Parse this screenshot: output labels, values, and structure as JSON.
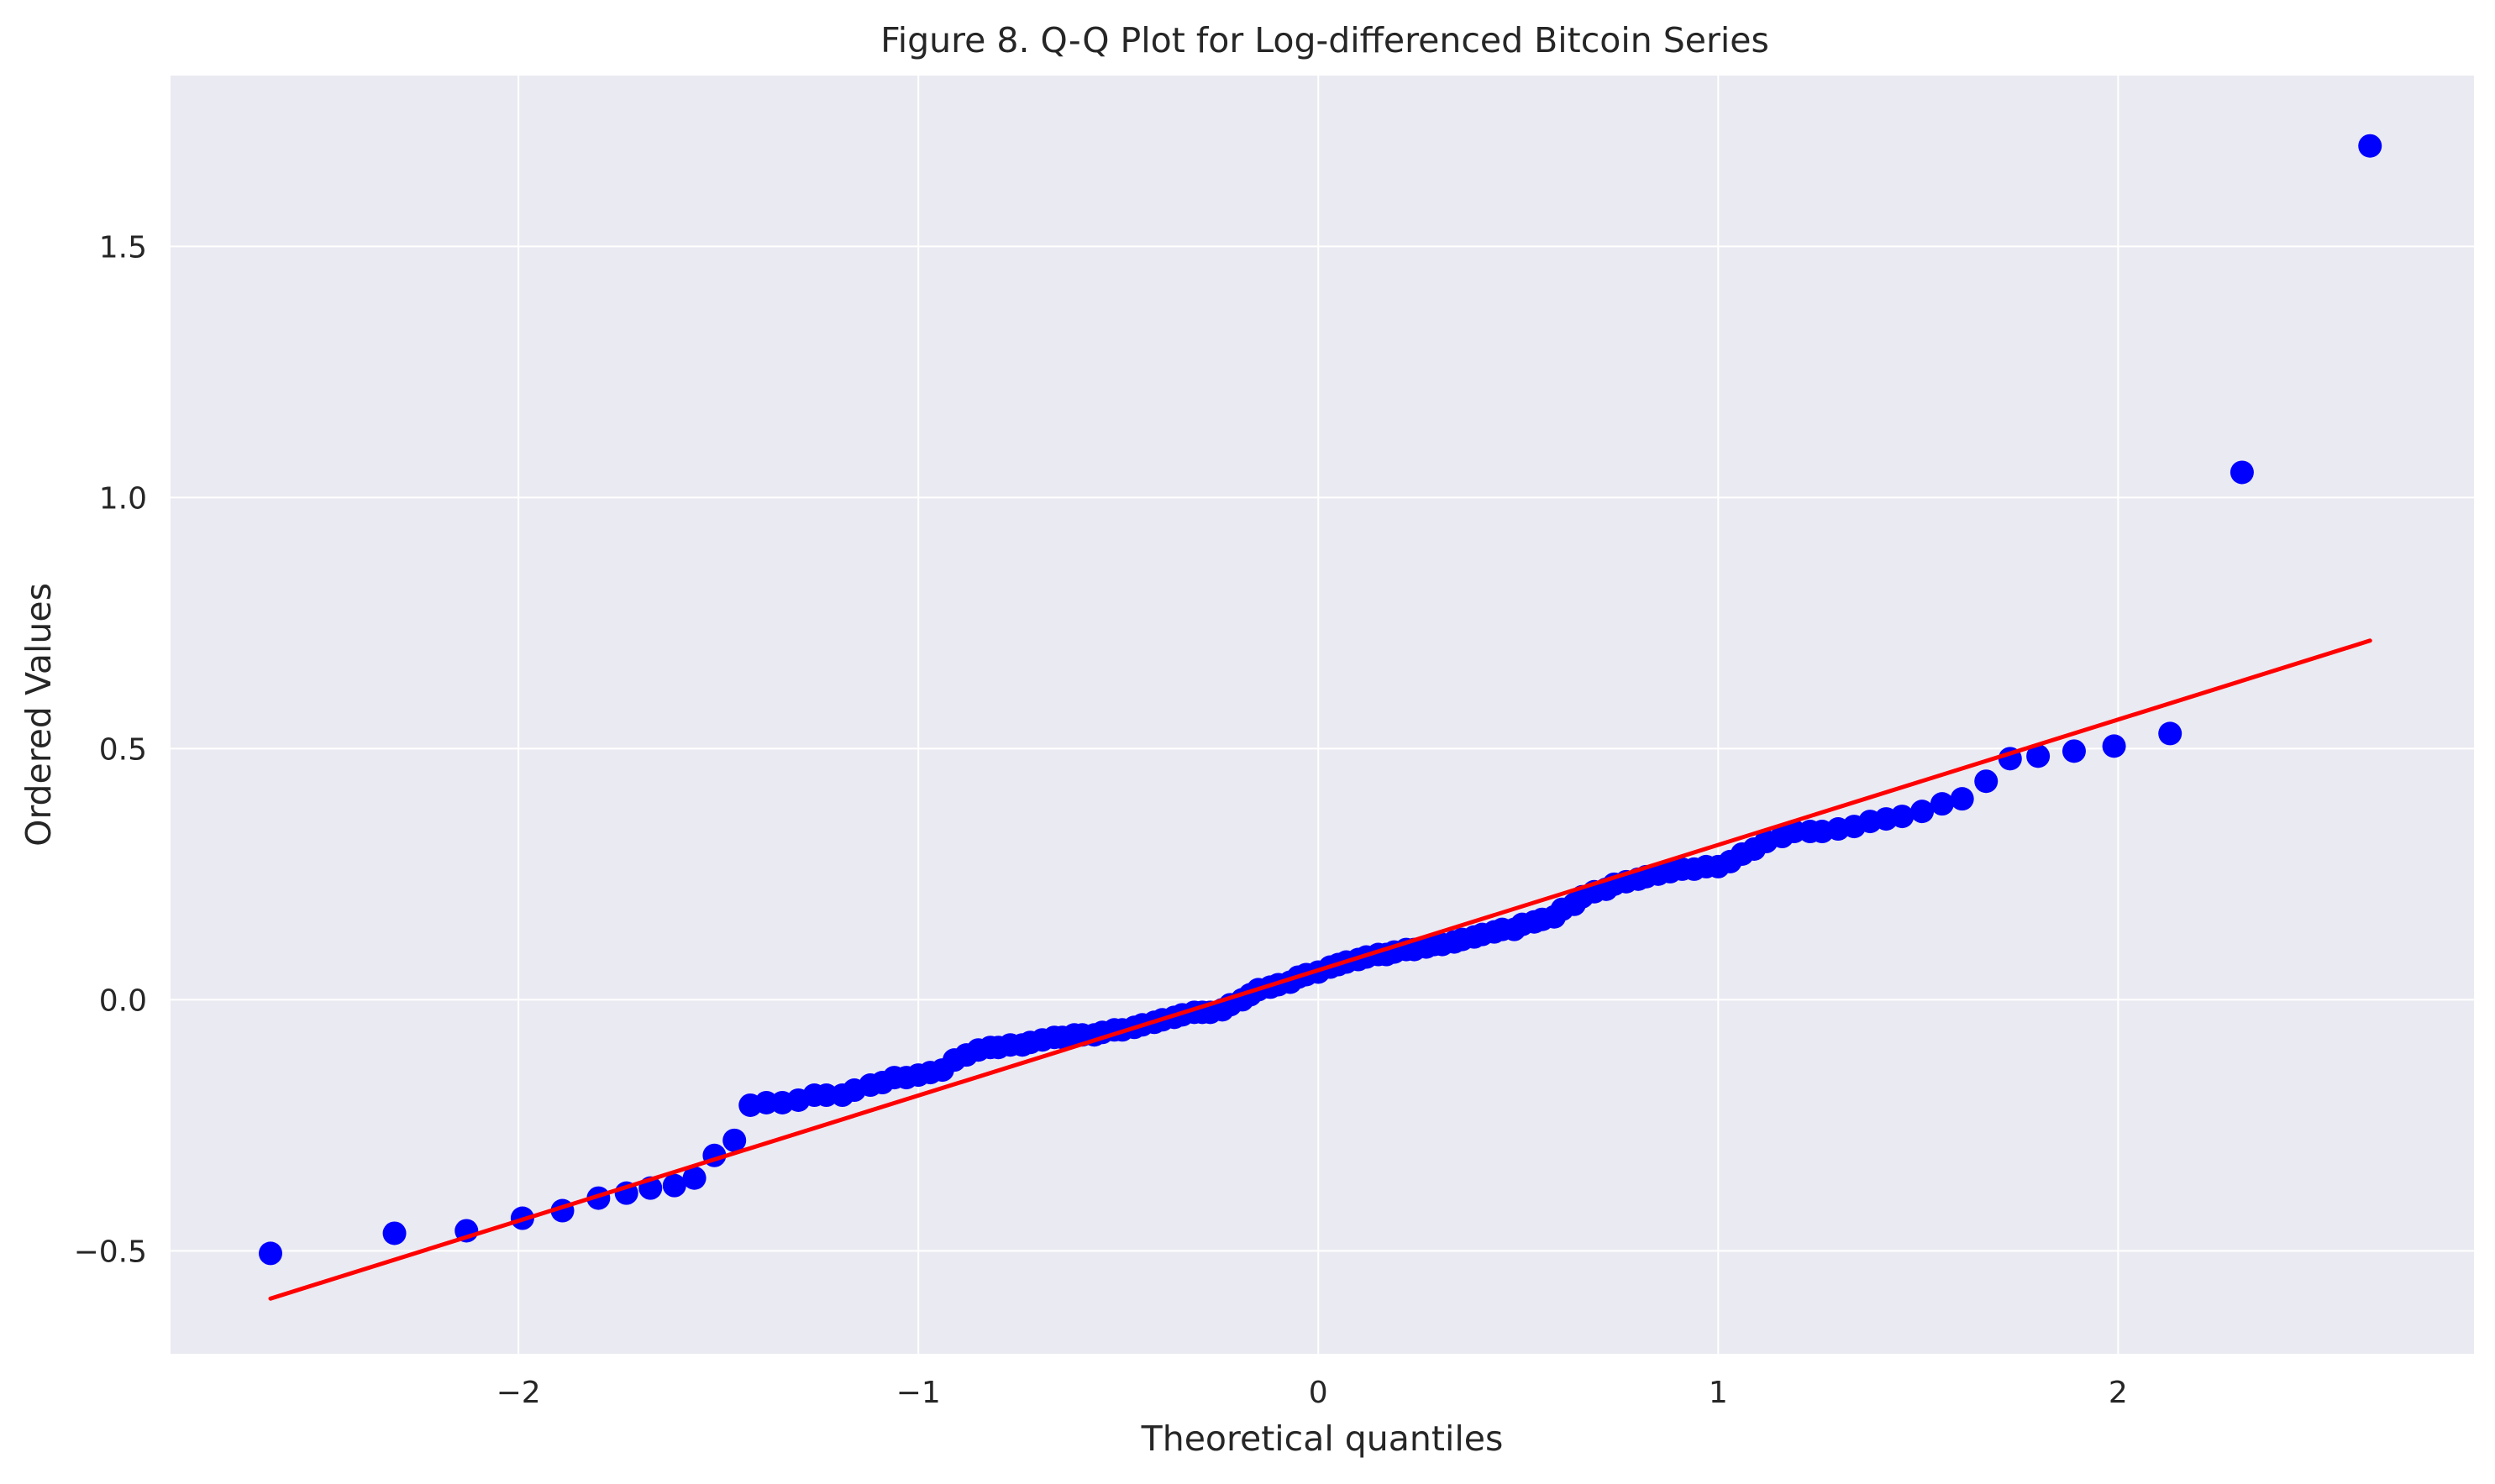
{
  "chart_data": {
    "type": "scatter",
    "title": "Figure 8. Q-Q Plot for Log-differenced Bitcoin Series",
    "xlabel": "Theoretical quantiles",
    "ylabel": "Ordered Values",
    "xlim": [
      -2.87,
      2.89
    ],
    "ylim": [
      -0.705,
      1.84
    ],
    "grid": true,
    "xticks": [
      -2,
      -1,
      0,
      1,
      2
    ],
    "xtick_labels": [
      "−2",
      "−1",
      "0",
      "1",
      "2"
    ],
    "yticks": [
      -0.5,
      0.0,
      0.5,
      1.0,
      1.5
    ],
    "ytick_labels": [
      "−0.5",
      "0.0",
      "0.5",
      "1.0",
      "1.5"
    ],
    "colors": {
      "background": "#eaeaf2",
      "points": "#0000ff",
      "fit_line": "#ff0000",
      "grid": "#ffffff"
    },
    "fit_line": {
      "x": [
        -2.62,
        2.63
      ],
      "y": [
        -0.595,
        0.715
      ]
    },
    "points": {
      "x": [
        -2.62,
        -2.31,
        -2.13,
        -1.99,
        -1.89,
        -1.8,
        -1.73,
        -1.67,
        -1.61,
        -1.56,
        -1.51,
        -1.46,
        -1.42,
        -1.38,
        -1.34,
        -1.3,
        -1.26,
        -1.23,
        -1.19,
        -1.16,
        -1.12,
        -1.09,
        -1.06,
        -1.03,
        -1.0,
        -0.97,
        -0.94,
        -0.91,
        -0.88,
        -0.85,
        -0.82,
        -0.8,
        -0.77,
        -0.74,
        -0.72,
        -0.69,
        -0.66,
        -0.64,
        -0.61,
        -0.59,
        -0.56,
        -0.54,
        -0.51,
        -0.49,
        -0.46,
        -0.44,
        -0.41,
        -0.39,
        -0.36,
        -0.34,
        -0.31,
        -0.29,
        -0.27,
        -0.24,
        -0.22,
        -0.19,
        -0.17,
        -0.15,
        -0.12,
        -0.1,
        -0.07,
        -0.05,
        -0.03,
        0.0,
        0.03,
        0.05,
        0.07,
        0.1,
        0.12,
        0.15,
        0.17,
        0.19,
        0.22,
        0.24,
        0.27,
        0.29,
        0.31,
        0.34,
        0.36,
        0.39,
        0.41,
        0.44,
        0.46,
        0.49,
        0.51,
        0.54,
        0.56,
        0.59,
        0.61,
        0.64,
        0.66,
        0.69,
        0.72,
        0.74,
        0.77,
        0.8,
        0.82,
        0.85,
        0.88,
        0.91,
        0.94,
        0.97,
        1.0,
        1.03,
        1.06,
        1.09,
        1.12,
        1.16,
        1.19,
        1.23,
        1.26,
        1.3,
        1.34,
        1.38,
        1.42,
        1.46,
        1.51,
        1.56,
        1.61,
        1.67,
        1.73,
        1.8,
        1.89,
        1.99,
        2.13,
        2.31,
        2.63
      ],
      "y": [
        -0.505,
        -0.465,
        -0.46,
        -0.435,
        -0.42,
        -0.395,
        -0.385,
        -0.375,
        -0.37,
        -0.355,
        -0.31,
        -0.28,
        -0.21,
        -0.205,
        -0.205,
        -0.2,
        -0.19,
        -0.19,
        -0.19,
        -0.18,
        -0.17,
        -0.165,
        -0.155,
        -0.155,
        -0.15,
        -0.145,
        -0.14,
        -0.12,
        -0.11,
        -0.1,
        -0.095,
        -0.095,
        -0.09,
        -0.09,
        -0.085,
        -0.08,
        -0.075,
        -0.075,
        -0.07,
        -0.07,
        -0.07,
        -0.065,
        -0.06,
        -0.06,
        -0.055,
        -0.05,
        -0.045,
        -0.04,
        -0.035,
        -0.03,
        -0.025,
        -0.025,
        -0.025,
        -0.02,
        -0.01,
        0.0,
        0.01,
        0.02,
        0.025,
        0.03,
        0.035,
        0.045,
        0.05,
        0.055,
        0.065,
        0.07,
        0.075,
        0.08,
        0.085,
        0.09,
        0.09,
        0.095,
        0.1,
        0.1,
        0.105,
        0.11,
        0.11,
        0.115,
        0.12,
        0.125,
        0.13,
        0.135,
        0.14,
        0.14,
        0.15,
        0.155,
        0.16,
        0.165,
        0.18,
        0.19,
        0.205,
        0.215,
        0.22,
        0.23,
        0.235,
        0.24,
        0.245,
        0.25,
        0.255,
        0.26,
        0.26,
        0.265,
        0.265,
        0.275,
        0.29,
        0.3,
        0.315,
        0.325,
        0.335,
        0.335,
        0.335,
        0.34,
        0.345,
        0.355,
        0.36,
        0.365,
        0.375,
        0.39,
        0.4,
        0.435,
        0.48,
        0.485,
        0.495,
        0.505,
        0.53,
        1.05,
        1.7
      ]
    }
  }
}
